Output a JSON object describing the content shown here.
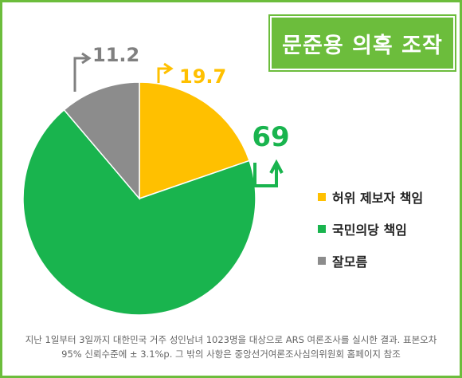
{
  "chart_data": {
    "type": "pie",
    "title": "문준용 의혹 조작",
    "slices": [
      {
        "label": "허위 제보자 책임",
        "value": 19.7,
        "value_text": "19.7",
        "color": "#ffc000"
      },
      {
        "label": "국민의당 책임",
        "value": 69,
        "value_text": "69",
        "color": "#19b44e"
      },
      {
        "label": "잘모름",
        "value": 11.2,
        "value_text": "11.2",
        "color": "#8c8c8c"
      }
    ],
    "legend_position": "right"
  },
  "footnote": {
    "line1": "지난 1일부터 3일까지 대한민국 거주 성인남녀 1023명을 대상으로 ARS 여론조사를 실시한 결과. 표본오차",
    "line2": "95% 신뢰수준에  ± 3.1%p. 그 밖의 사항은 중앙선거여론조사심의위원회 홈페이지 참조"
  },
  "colors": {
    "frame": "#6cbd3c",
    "title_bg": "#6cbd3c"
  }
}
